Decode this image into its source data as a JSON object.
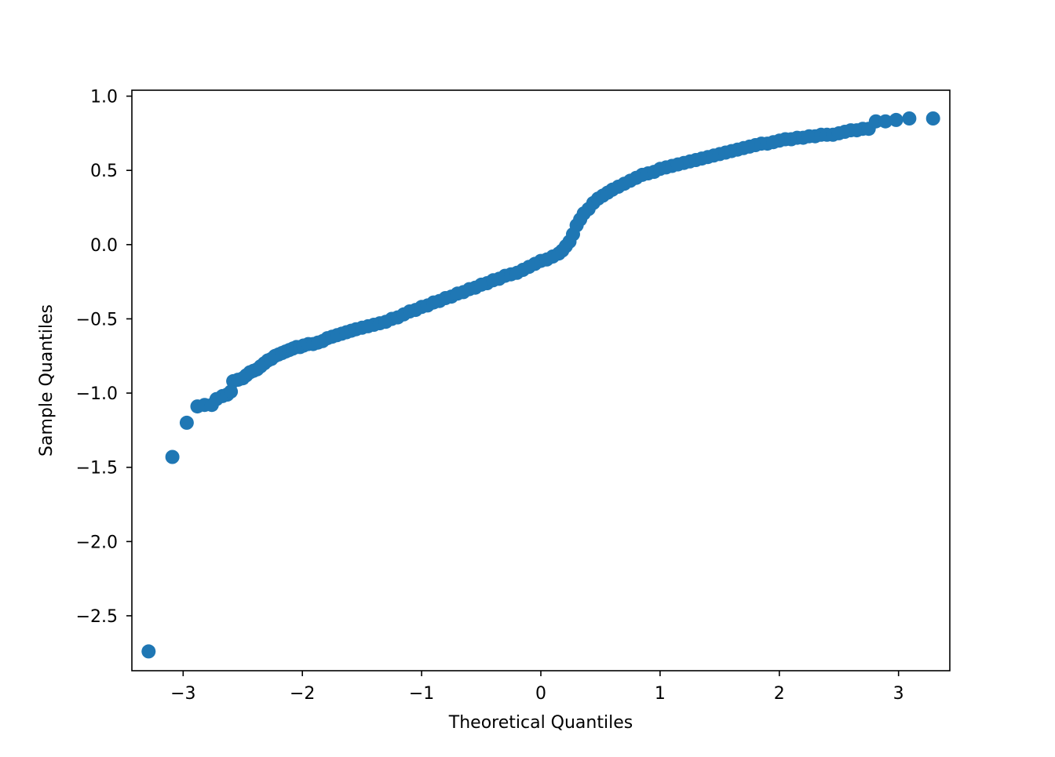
{
  "chart_data": {
    "type": "scatter",
    "title": "",
    "xlabel": "Theoretical Quantiles",
    "ylabel": "Sample Quantiles",
    "xlim": [
      -3.43,
      3.43
    ],
    "ylim": [
      -2.87,
      1.04
    ],
    "xticks": [
      {
        "value": -3,
        "label": "−3"
      },
      {
        "value": -2,
        "label": "−2"
      },
      {
        "value": -1,
        "label": "−1"
      },
      {
        "value": 0,
        "label": "0"
      },
      {
        "value": 1,
        "label": "1"
      },
      {
        "value": 2,
        "label": "2"
      },
      {
        "value": 3,
        "label": "3"
      }
    ],
    "yticks": [
      {
        "value": 1.0,
        "label": "1.0"
      },
      {
        "value": 0.5,
        "label": "0.5"
      },
      {
        "value": 0.0,
        "label": "0.0"
      },
      {
        "value": -0.5,
        "label": "−0.5"
      },
      {
        "value": -1.0,
        "label": "−1.0"
      },
      {
        "value": -1.5,
        "label": "−1.5"
      },
      {
        "value": -2.0,
        "label": "−2.0"
      },
      {
        "value": -2.5,
        "label": "−2.5"
      }
    ],
    "grid": false,
    "marker_color": "#1f77b4",
    "series": [
      {
        "points": [
          [
            -3.29,
            -2.74
          ],
          [
            -3.09,
            -1.43
          ],
          [
            -2.97,
            -1.2
          ],
          [
            -2.88,
            -1.09
          ],
          [
            -2.82,
            -1.08
          ],
          [
            -2.76,
            -1.08
          ],
          [
            -2.72,
            -1.04
          ],
          [
            -2.67,
            -1.02
          ],
          [
            -2.63,
            -1.01
          ],
          [
            -2.6,
            -0.99
          ],
          [
            -2.58,
            -0.92
          ],
          [
            -2.54,
            -0.91
          ],
          [
            -2.5,
            -0.9
          ],
          [
            -2.47,
            -0.88
          ],
          [
            -2.44,
            -0.86
          ],
          [
            -2.41,
            -0.85
          ],
          [
            -2.38,
            -0.84
          ],
          [
            -2.35,
            -0.82
          ],
          [
            -2.32,
            -0.8
          ],
          [
            -2.29,
            -0.78
          ],
          [
            -2.26,
            -0.77
          ],
          [
            -2.23,
            -0.75
          ],
          [
            -2.2,
            -0.74
          ],
          [
            -2.17,
            -0.73
          ],
          [
            -2.14,
            -0.72
          ],
          [
            -2.11,
            -0.71
          ],
          [
            -2.08,
            -0.7
          ],
          [
            -2.05,
            -0.69
          ],
          [
            -2.02,
            -0.69
          ],
          [
            -1.99,
            -0.68
          ],
          [
            -1.95,
            -0.67
          ],
          [
            -1.91,
            -0.67
          ],
          [
            -1.87,
            -0.66
          ],
          [
            -1.83,
            -0.65
          ],
          [
            -1.79,
            -0.63
          ],
          [
            -1.75,
            -0.62
          ],
          [
            -1.71,
            -0.61
          ],
          [
            -1.67,
            -0.6
          ],
          [
            -1.63,
            -0.59
          ],
          [
            -1.59,
            -0.58
          ],
          [
            -1.55,
            -0.57
          ],
          [
            -1.5,
            -0.56
          ],
          [
            -1.45,
            -0.55
          ],
          [
            -1.4,
            -0.54
          ],
          [
            -1.35,
            -0.53
          ],
          [
            -1.3,
            -0.52
          ],
          [
            -1.25,
            -0.5
          ],
          [
            -1.2,
            -0.49
          ],
          [
            -1.15,
            -0.47
          ],
          [
            -1.1,
            -0.45
          ],
          [
            -1.05,
            -0.44
          ],
          [
            -1.0,
            -0.42
          ],
          [
            -0.95,
            -0.41
          ],
          [
            -0.9,
            -0.39
          ],
          [
            -0.85,
            -0.38
          ],
          [
            -0.8,
            -0.36
          ],
          [
            -0.75,
            -0.35
          ],
          [
            -0.7,
            -0.33
          ],
          [
            -0.65,
            -0.32
          ],
          [
            -0.6,
            -0.3
          ],
          [
            -0.55,
            -0.29
          ],
          [
            -0.5,
            -0.27
          ],
          [
            -0.45,
            -0.26
          ],
          [
            -0.4,
            -0.24
          ],
          [
            -0.35,
            -0.23
          ],
          [
            -0.3,
            -0.21
          ],
          [
            -0.25,
            -0.2
          ],
          [
            -0.2,
            -0.19
          ],
          [
            -0.15,
            -0.17
          ],
          [
            -0.1,
            -0.15
          ],
          [
            -0.05,
            -0.13
          ],
          [
            0.0,
            -0.11
          ],
          [
            0.05,
            -0.1
          ],
          [
            0.1,
            -0.08
          ],
          [
            0.15,
            -0.06
          ],
          [
            0.18,
            -0.04
          ],
          [
            0.21,
            -0.01
          ],
          [
            0.24,
            0.02
          ],
          [
            0.27,
            0.07
          ],
          [
            0.3,
            0.13
          ],
          [
            0.33,
            0.17
          ],
          [
            0.36,
            0.21
          ],
          [
            0.4,
            0.24
          ],
          [
            0.44,
            0.28
          ],
          [
            0.48,
            0.31
          ],
          [
            0.52,
            0.33
          ],
          [
            0.56,
            0.35
          ],
          [
            0.6,
            0.37
          ],
          [
            0.65,
            0.39
          ],
          [
            0.7,
            0.41
          ],
          [
            0.75,
            0.43
          ],
          [
            0.8,
            0.45
          ],
          [
            0.85,
            0.47
          ],
          [
            0.9,
            0.48
          ],
          [
            0.95,
            0.49
          ],
          [
            1.0,
            0.51
          ],
          [
            1.05,
            0.52
          ],
          [
            1.1,
            0.53
          ],
          [
            1.15,
            0.54
          ],
          [
            1.2,
            0.55
          ],
          [
            1.25,
            0.56
          ],
          [
            1.3,
            0.57
          ],
          [
            1.35,
            0.58
          ],
          [
            1.4,
            0.59
          ],
          [
            1.45,
            0.6
          ],
          [
            1.5,
            0.61
          ],
          [
            1.55,
            0.62
          ],
          [
            1.6,
            0.63
          ],
          [
            1.65,
            0.64
          ],
          [
            1.7,
            0.65
          ],
          [
            1.75,
            0.66
          ],
          [
            1.8,
            0.67
          ],
          [
            1.85,
            0.68
          ],
          [
            1.9,
            0.68
          ],
          [
            1.95,
            0.69
          ],
          [
            2.0,
            0.7
          ],
          [
            2.05,
            0.71
          ],
          [
            2.1,
            0.71
          ],
          [
            2.15,
            0.72
          ],
          [
            2.2,
            0.72
          ],
          [
            2.25,
            0.73
          ],
          [
            2.3,
            0.73
          ],
          [
            2.35,
            0.74
          ],
          [
            2.4,
            0.74
          ],
          [
            2.45,
            0.74
          ],
          [
            2.5,
            0.75
          ],
          [
            2.55,
            0.76
          ],
          [
            2.6,
            0.77
          ],
          [
            2.65,
            0.77
          ],
          [
            2.7,
            0.78
          ],
          [
            2.75,
            0.78
          ],
          [
            2.81,
            0.83
          ],
          [
            2.89,
            0.83
          ],
          [
            2.98,
            0.84
          ],
          [
            3.09,
            0.85
          ],
          [
            3.29,
            0.85
          ]
        ]
      }
    ]
  }
}
